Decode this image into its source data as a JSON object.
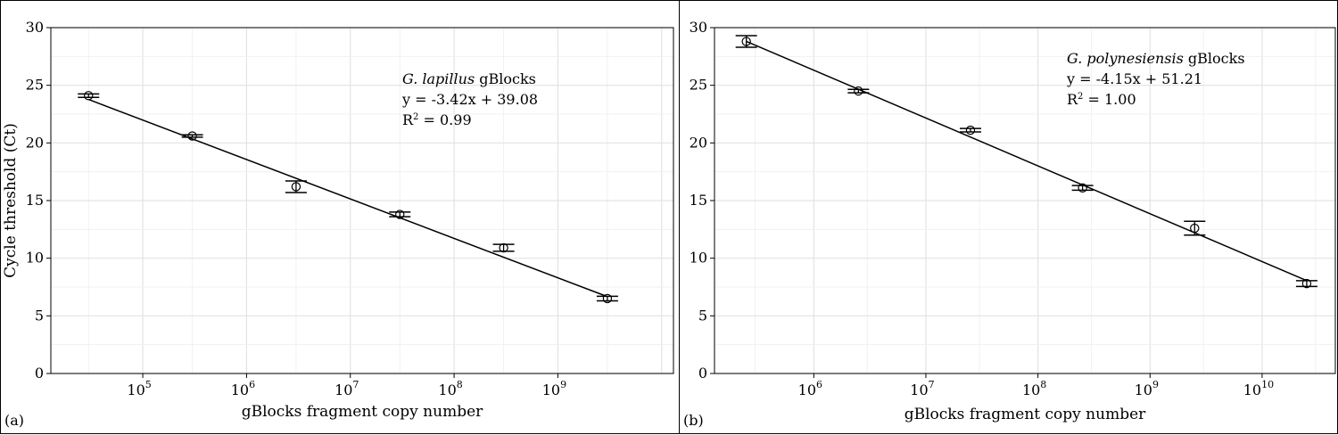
{
  "chart_data": [
    {
      "type": "scatter",
      "panel_label": "(a)",
      "xlabel": "gBlocks fragment copy number",
      "ylabel": "Cycle threshold (Ct)",
      "x_scale": "log10",
      "xlim": [
        13000,
        13000000000
      ],
      "ylim": [
        0,
        30
      ],
      "x_ticks": [
        100000,
        1000000,
        10000000,
        100000000,
        1000000000
      ],
      "x_tick_labels": [
        {
          "base": "10",
          "exp": "5"
        },
        {
          "base": "10",
          "exp": "6"
        },
        {
          "base": "10",
          "exp": "7"
        },
        {
          "base": "10",
          "exp": "8"
        },
        {
          "base": "10",
          "exp": "9"
        }
      ],
      "y_ticks": [
        0,
        5,
        10,
        15,
        20,
        25,
        30
      ],
      "grid": true,
      "points": [
        {
          "x": 30000,
          "y": 24.1,
          "err": 0.15
        },
        {
          "x": 300000,
          "y": 20.6,
          "err": 0.1
        },
        {
          "x": 3000000,
          "y": 16.2,
          "err": 0.5
        },
        {
          "x": 30000000,
          "y": 13.8,
          "err": 0.2
        },
        {
          "x": 300000000,
          "y": 10.9,
          "err": 0.3
        },
        {
          "x": 3000000000,
          "y": 6.5,
          "err": 0.2
        }
      ],
      "fit": {
        "slope": -3.42,
        "intercept": 39.08
      },
      "annotation": {
        "species": "G. lapillus",
        "suffix": " gBlocks",
        "equation": "y = -3.42x + 39.08",
        "r2_label": "R",
        "r2_sup": "2",
        "r2_value": " = 0.99"
      }
    },
    {
      "type": "scatter",
      "panel_label": "(b)",
      "xlabel": "gBlocks fragment copy number",
      "ylabel": "",
      "x_scale": "log10",
      "xlim": [
        130000,
        45000000000
      ],
      "ylim": [
        0,
        30
      ],
      "x_ticks": [
        1000000,
        10000000,
        100000000,
        1000000000,
        10000000000
      ],
      "x_tick_labels": [
        {
          "base": "10",
          "exp": "6"
        },
        {
          "base": "10",
          "exp": "7"
        },
        {
          "base": "10",
          "exp": "8"
        },
        {
          "base": "10",
          "exp": "9"
        },
        {
          "base": "10",
          "exp": "10"
        }
      ],
      "y_ticks": [
        0,
        5,
        10,
        15,
        20,
        25,
        30
      ],
      "grid": true,
      "points": [
        {
          "x": 250000,
          "y": 28.8,
          "err": 0.5
        },
        {
          "x": 2500000,
          "y": 24.5,
          "err": 0.15
        },
        {
          "x": 25000000,
          "y": 21.1,
          "err": 0.15
        },
        {
          "x": 250000000,
          "y": 16.1,
          "err": 0.2
        },
        {
          "x": 2500000000,
          "y": 12.6,
          "err": 0.6
        },
        {
          "x": 25000000000,
          "y": 7.8,
          "err": 0.25
        }
      ],
      "fit": {
        "slope": -4.15,
        "intercept": 51.21
      },
      "annotation": {
        "species": "G. polynesiensis",
        "suffix": " gBlocks",
        "equation": "y = -4.15x + 51.21",
        "r2_label": "R",
        "r2_sup": "2",
        "r2_value": " = 1.00"
      }
    }
  ]
}
